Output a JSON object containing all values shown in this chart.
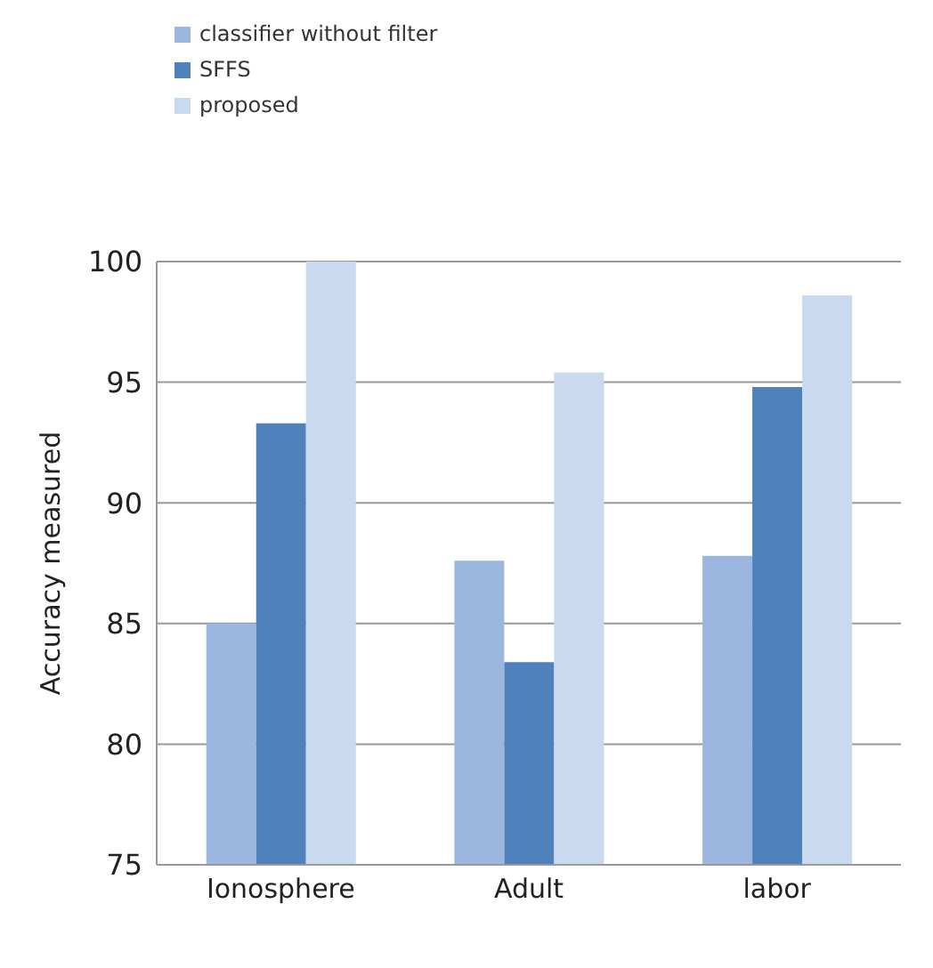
{
  "chart_data": {
    "type": "bar",
    "ylabel": "Accuracy measured",
    "categories": [
      "Ionosphere",
      "Adult",
      "labor"
    ],
    "series": [
      {
        "name": "classifier without filter",
        "color": "#9bb7e0",
        "values": [
          85.0,
          87.6,
          87.8
        ]
      },
      {
        "name": "SFFS",
        "color": "#4f81bd",
        "values": [
          93.3,
          83.4,
          94.8
        ]
      },
      {
        "name": "proposed",
        "color": "#c9d9ef",
        "values": [
          100,
          95.4,
          98.6
        ]
      }
    ],
    "ylim": [
      75,
      100
    ],
    "yticks": [
      75,
      80,
      85,
      90,
      95,
      100
    ],
    "grid": "y",
    "legend": "top left"
  }
}
